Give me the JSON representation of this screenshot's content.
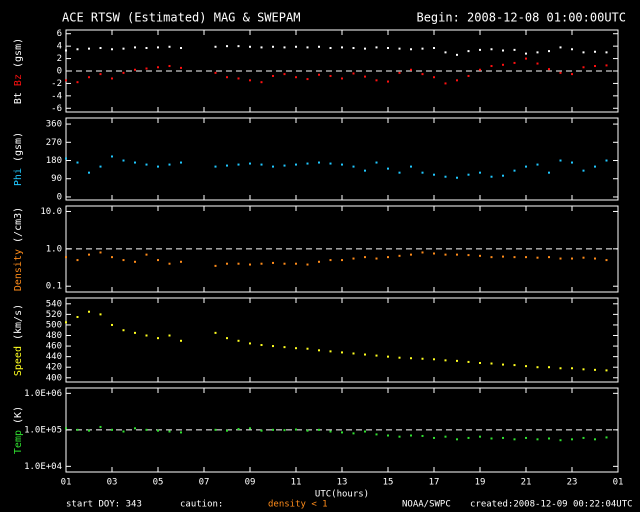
{
  "header": {
    "title": "ACE RTSW (Estimated) MAG & SWEPAM",
    "begin": "Begin: 2008-12-08 01:00:00UTC"
  },
  "footer": {
    "start": "start DOY: 343",
    "caution": "caution:",
    "density_note": "density < 1",
    "agency": "NOAA/SWPC",
    "created": "created:2008-12-09 00:22:04UTC"
  },
  "chart_data": [
    {
      "type": "scatter",
      "yunit": "(gsm)",
      "ylim": [
        -6.6,
        6.6
      ],
      "yticks": [
        6,
        4,
        2,
        0,
        -2,
        -4,
        -6
      ],
      "refline": 0,
      "x": [
        0,
        0.5,
        1,
        1.5,
        2,
        2.5,
        3,
        3.5,
        4,
        4.5,
        5,
        5.5,
        6,
        6.5,
        7,
        7.5,
        8,
        8.5,
        9,
        9.5,
        10,
        10.5,
        11,
        11.5,
        12,
        12.5,
        13,
        13.5,
        14,
        14.5,
        15,
        15.5,
        16,
        16.5,
        17,
        17.5,
        18,
        18.5,
        19,
        19.5,
        20,
        20.5,
        21,
        21.5,
        22,
        22.5,
        23,
        23.5
      ],
      "series": [
        {
          "name": "Bt",
          "color": "#ffffff",
          "values": [
            3.3,
            3.5,
            3.6,
            3.7,
            3.5,
            3.6,
            3.8,
            3.7,
            3.8,
            3.9,
            3.7,
            null,
            null,
            3.9,
            4.0,
            4.0,
            3.9,
            3.8,
            3.9,
            3.8,
            3.9,
            3.8,
            3.9,
            3.7,
            3.8,
            3.7,
            3.6,
            3.8,
            3.7,
            3.6,
            3.5,
            3.6,
            3.7,
            3.0,
            2.6,
            3.2,
            3.4,
            3.5,
            3.3,
            3.4,
            2.8,
            3.0,
            3.2,
            3.8,
            3.5,
            3.0,
            3.1,
            3.0
          ]
        },
        {
          "name": "Bz",
          "color": "#ff1010",
          "values": [
            -1.5,
            -1.8,
            -1.0,
            -0.5,
            -1.2,
            -0.3,
            0.2,
            0.4,
            0.6,
            0.8,
            0.5,
            null,
            null,
            -0.3,
            -1.0,
            -1.2,
            -1.5,
            -1.8,
            -0.8,
            -0.5,
            -1.0,
            -1.3,
            -0.6,
            -0.8,
            -1.2,
            -0.4,
            -0.9,
            -1.5,
            -1.7,
            -0.3,
            0.2,
            -0.5,
            -1.0,
            -2.0,
            -1.5,
            -0.8,
            0.2,
            0.8,
            1.0,
            1.3,
            2.0,
            1.2,
            0.3,
            -0.3,
            -0.5,
            0.6,
            0.8,
            0.9
          ]
        }
      ]
    },
    {
      "type": "scatter",
      "yunit": "(gsm)",
      "ylim": [
        -15,
        390
      ],
      "yticks": [
        360,
        270,
        180,
        90,
        0
      ],
      "x": [
        0,
        0.5,
        1,
        1.5,
        2,
        2.5,
        3,
        3.5,
        4,
        4.5,
        5,
        5.5,
        6,
        6.5,
        7,
        7.5,
        8,
        8.5,
        9,
        9.5,
        10,
        10.5,
        11,
        11.5,
        12,
        12.5,
        13,
        13.5,
        14,
        14.5,
        15,
        15.5,
        16,
        16.5,
        17,
        17.5,
        18,
        18.5,
        19,
        19.5,
        20,
        20.5,
        21,
        21.5,
        22,
        22.5,
        23,
        23.5
      ],
      "series": [
        {
          "name": "Phi",
          "color": "#20c8ff",
          "values": [
            190,
            170,
            120,
            150,
            200,
            180,
            170,
            160,
            150,
            160,
            170,
            null,
            null,
            150,
            155,
            160,
            165,
            160,
            150,
            155,
            160,
            165,
            170,
            165,
            160,
            150,
            130,
            170,
            140,
            120,
            150,
            120,
            110,
            100,
            95,
            110,
            120,
            100,
            105,
            130,
            150,
            160,
            120,
            180,
            170,
            130,
            150,
            180
          ]
        }
      ]
    },
    {
      "type": "scatter",
      "yunit": "(/cm3)",
      "log": true,
      "ylim": [
        0.07,
        14
      ],
      "yticks": [
        {
          "value": 10,
          "label": "10.0"
        },
        {
          "value": 1,
          "label": "1.0"
        },
        0.1
      ],
      "refline": 1,
      "x": [
        0,
        0.5,
        1,
        1.5,
        2,
        2.5,
        3,
        3.5,
        4,
        4.5,
        5,
        5.5,
        6,
        6.5,
        7,
        7.5,
        8,
        8.5,
        9,
        9.5,
        10,
        10.5,
        11,
        11.5,
        12,
        12.5,
        13,
        13.5,
        14,
        14.5,
        15,
        15.5,
        16,
        16.5,
        17,
        17.5,
        18,
        18.5,
        19,
        19.5,
        20,
        20.5,
        21,
        21.5,
        22,
        22.5,
        23,
        23.5
      ],
      "series": [
        {
          "name": "Density",
          "color": "#ff8c1a",
          "values": [
            0.6,
            0.5,
            0.7,
            0.8,
            0.6,
            0.5,
            0.45,
            0.7,
            0.5,
            0.4,
            0.45,
            null,
            null,
            0.35,
            0.4,
            0.4,
            0.38,
            0.4,
            0.42,
            0.4,
            0.4,
            0.38,
            0.45,
            0.5,
            0.5,
            0.55,
            0.6,
            0.55,
            0.6,
            0.65,
            0.7,
            0.8,
            0.75,
            0.7,
            0.7,
            0.68,
            0.65,
            0.6,
            0.62,
            0.6,
            0.6,
            0.58,
            0.6,
            0.55,
            0.55,
            0.58,
            0.55,
            0.5
          ]
        }
      ]
    },
    {
      "type": "scatter",
      "yunit": "(km/s)",
      "ylim": [
        392,
        551
      ],
      "yticks": [
        540,
        520,
        500,
        480,
        460,
        440,
        420,
        400
      ],
      "x": [
        0,
        0.5,
        1,
        1.5,
        2,
        2.5,
        3,
        3.5,
        4,
        4.5,
        5,
        5.5,
        6,
        6.5,
        7,
        7.5,
        8,
        8.5,
        9,
        9.5,
        10,
        10.5,
        11,
        11.5,
        12,
        12.5,
        13,
        13.5,
        14,
        14.5,
        15,
        15.5,
        16,
        16.5,
        17,
        17.5,
        18,
        18.5,
        19,
        19.5,
        20,
        20.5,
        21,
        21.5,
        22,
        22.5,
        23,
        23.5
      ],
      "series": [
        {
          "name": "Speed",
          "color": "#ffff20",
          "values": [
            505,
            515,
            525,
            520,
            500,
            490,
            485,
            480,
            475,
            480,
            470,
            null,
            null,
            485,
            475,
            470,
            465,
            462,
            460,
            458,
            456,
            455,
            452,
            450,
            448,
            446,
            444,
            442,
            440,
            438,
            437,
            436,
            435,
            433,
            432,
            430,
            428,
            427,
            425,
            424,
            422,
            420,
            420,
            418,
            418,
            416,
            415,
            414
          ]
        }
      ]
    },
    {
      "type": "scatter",
      "yunit": "(K)",
      "log": true,
      "ylim": [
        7000,
        1400000
      ],
      "yticks": [
        {
          "value": 1000000,
          "label": "1.0E+06"
        },
        {
          "value": 100000,
          "label": "1.0E+05"
        },
        {
          "value": 10000,
          "label": "1.0E+04"
        }
      ],
      "refline": 100000,
      "xlabel": "UTC(hours)",
      "xlim": [
        0,
        24
      ],
      "xticks": [
        {
          "value": 0,
          "label": "01"
        },
        {
          "value": 2,
          "label": "03"
        },
        {
          "value": 4,
          "label": "05"
        },
        {
          "value": 6,
          "label": "07"
        },
        {
          "value": 8,
          "label": "09"
        },
        {
          "value": 10,
          "label": "11"
        },
        {
          "value": 12,
          "label": "13"
        },
        {
          "value": 14,
          "label": "15"
        },
        {
          "value": 16,
          "label": "17"
        },
        {
          "value": 18,
          "label": "19"
        },
        {
          "value": 20,
          "label": "21"
        },
        {
          "value": 22,
          "label": "23"
        },
        {
          "value": 24,
          "label": "01"
        }
      ],
      "x": [
        0,
        0.5,
        1,
        1.5,
        2,
        2.5,
        3,
        3.5,
        4,
        4.5,
        5,
        5.5,
        6,
        6.5,
        7,
        7.5,
        8,
        8.5,
        9,
        9.5,
        10,
        10.5,
        11,
        11.5,
        12,
        12.5,
        13,
        13.5,
        14,
        14.5,
        15,
        15.5,
        16,
        16.5,
        17,
        17.5,
        18,
        18.5,
        19,
        19.5,
        20,
        20.5,
        21,
        21.5,
        22,
        22.5,
        23,
        23.5
      ],
      "series": [
        {
          "name": "Temp",
          "color": "#30e030",
          "values": [
            110000,
            100000,
            95000,
            120000,
            100000,
            90000,
            110000,
            100000,
            95000,
            90000,
            85000,
            null,
            null,
            100000,
            95000,
            105000,
            110000,
            95000,
            100000,
            98000,
            102000,
            95000,
            100000,
            90000,
            85000,
            80000,
            90000,
            75000,
            70000,
            65000,
            70000,
            68000,
            60000,
            65000,
            55000,
            60000,
            65000,
            58000,
            60000,
            55000,
            60000,
            55000,
            58000,
            52000,
            55000,
            60000,
            55000,
            62000
          ]
        }
      ]
    }
  ]
}
